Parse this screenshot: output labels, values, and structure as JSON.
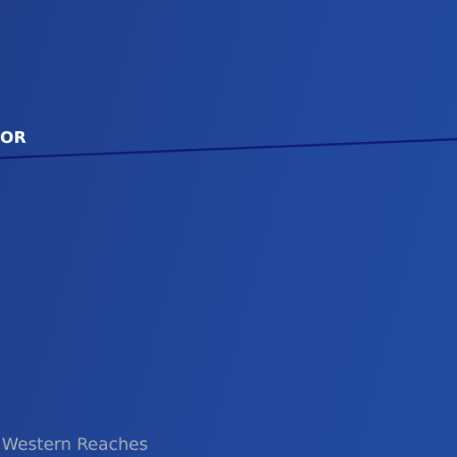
{
  "map": {
    "background_colors": [
      "#1f3f8a",
      "#234c9e"
    ],
    "route_color": "#0d1a78",
    "place_label": "OR",
    "region_label": "Western Reaches"
  }
}
